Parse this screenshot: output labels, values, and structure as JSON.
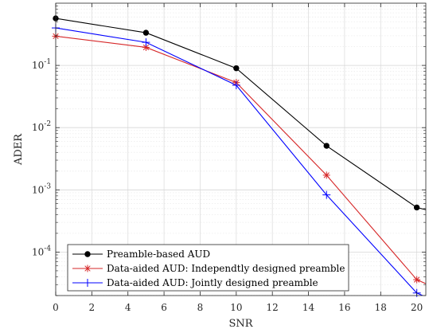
{
  "chart_data": {
    "type": "line",
    "xlabel": "SNR",
    "ylabel": "ADER",
    "y_scale": "log",
    "xlim": [
      0,
      20.5
    ],
    "ylim": [
      2e-05,
      1
    ],
    "xticks": [
      0,
      2,
      4,
      6,
      8,
      10,
      12,
      14,
      16,
      18,
      20
    ],
    "xtick_labels": [
      "0",
      "2",
      "4",
      "6",
      "8",
      "10",
      "12",
      "14",
      "16",
      "18",
      "20"
    ],
    "yticks": [
      0.0001,
      0.001,
      0.01,
      0.1
    ],
    "ytick_labels": [
      {
        "base": "10",
        "exp": "-4"
      },
      {
        "base": "10",
        "exp": "-3"
      },
      {
        "base": "10",
        "exp": "-2"
      },
      {
        "base": "10",
        "exp": "-1"
      }
    ],
    "grid": true,
    "legend_position": "bottom-left",
    "series": [
      {
        "name": "Preamble-based AUD",
        "color": "#000000",
        "marker": "dot",
        "x": [
          0,
          5,
          10,
          15,
          20,
          20.5
        ],
        "y": [
          0.57,
          0.335,
          0.09,
          0.0051,
          0.00052,
          0.00048
        ]
      },
      {
        "name": "Data-aided AUD: Independtly designed preamble",
        "color": "#d62728",
        "marker": "asterisk",
        "x": [
          0,
          5,
          10,
          15,
          20,
          20.5
        ],
        "y": [
          0.295,
          0.195,
          0.053,
          0.00172,
          3.6e-05,
          3.1e-05
        ]
      },
      {
        "name": "Data-aided AUD: Jointly designed preamble",
        "color": "#0000ff",
        "marker": "plus",
        "x": [
          0,
          5,
          10,
          15,
          20,
          20.5
        ],
        "y": [
          0.4,
          0.235,
          0.048,
          0.00083,
          2.2e-05,
          1.9e-05
        ]
      }
    ]
  }
}
